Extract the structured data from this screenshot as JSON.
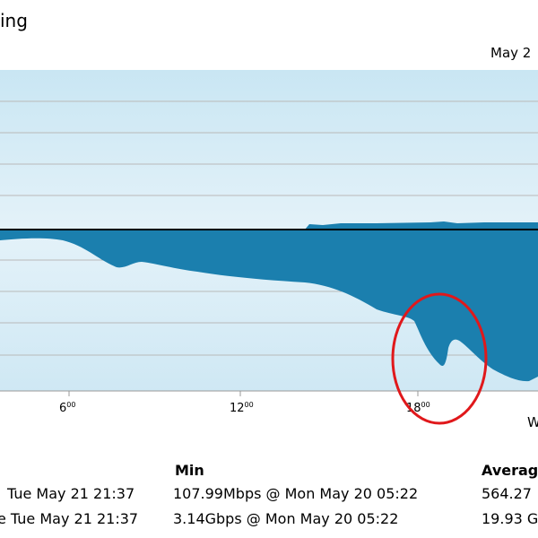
{
  "header": {
    "title": "ing",
    "date": "May 2"
  },
  "axis": {
    "labels": [
      {
        "hour": "6",
        "min": "00"
      },
      {
        "hour": "12",
        "min": "00"
      },
      {
        "hour": "18",
        "min": "00"
      }
    ],
    "corner": "W"
  },
  "table": {
    "headers": [
      "Min",
      "Averag"
    ],
    "rows": [
      [
        "Tue May 21 21:37",
        "107.99Mbps @ Mon May 20 05:22",
        "564.27"
      ],
      [
        "e Tue May 21 21:37",
        "3.14Gbps @ Mon May 20 05:22",
        "19.93 G"
      ]
    ]
  }
}
